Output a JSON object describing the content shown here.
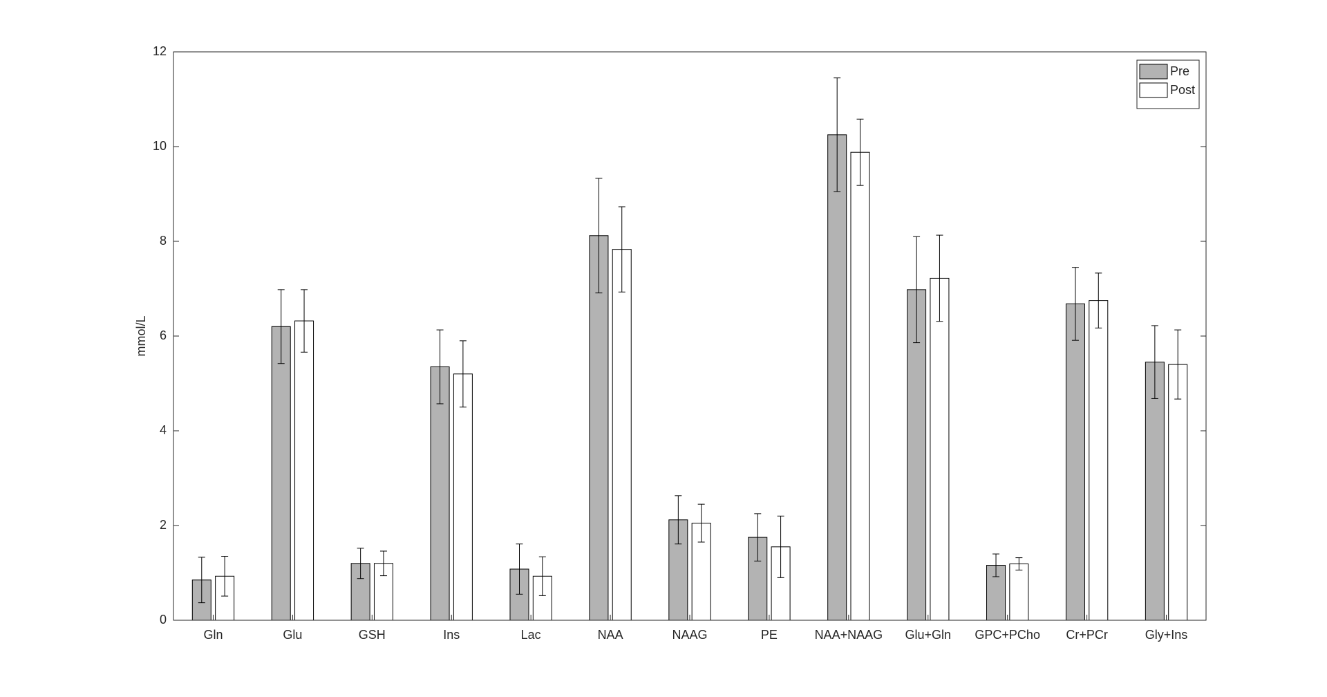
{
  "chart_data": {
    "type": "bar",
    "y_label": "mmol/L",
    "categories": [
      "Gln",
      "Glu",
      "GSH",
      "Ins",
      "Lac",
      "NAA",
      "NAAG",
      "PE",
      "NAA+NAAG",
      "Glu+Gln",
      "GPC+PCho",
      "Cr+PCr",
      "Gly+Ins"
    ],
    "series": [
      {
        "name": "Pre",
        "color": "#b3b3b3",
        "values": [
          0.85,
          6.2,
          1.2,
          5.35,
          1.08,
          8.12,
          2.12,
          1.75,
          10.25,
          6.98,
          1.16,
          6.68,
          5.45
        ],
        "errors": [
          0.48,
          0.78,
          0.32,
          0.78,
          0.53,
          1.21,
          0.51,
          0.5,
          1.2,
          1.12,
          0.24,
          0.77,
          0.77
        ]
      },
      {
        "name": "Post",
        "color": "#ffffff",
        "values": [
          0.93,
          6.32,
          1.2,
          5.2,
          0.93,
          7.83,
          2.05,
          1.55,
          9.88,
          7.22,
          1.19,
          6.75,
          5.4
        ],
        "errors": [
          0.42,
          0.66,
          0.26,
          0.7,
          0.41,
          0.9,
          0.4,
          0.65,
          0.7,
          0.91,
          0.13,
          0.58,
          0.73
        ]
      }
    ],
    "ylim": [
      0,
      12
    ],
    "yticks": [
      0,
      2,
      4,
      6,
      8,
      10,
      12
    ],
    "grid": false,
    "legend": "northeast"
  }
}
